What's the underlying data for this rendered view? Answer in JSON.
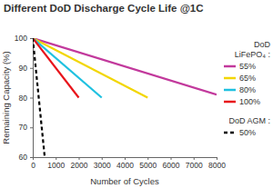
{
  "chart_data": {
    "type": "line",
    "title": "Different DoD Discharge Cycle Life @1C",
    "x_label": "Number of Cycles",
    "y_label": "Remaining Capacity (%)",
    "xlim": [
      0,
      8000
    ],
    "xticks": [
      0,
      1000,
      2000,
      3000,
      4000,
      5000,
      6000,
      7000,
      8000
    ],
    "ylim": [
      60,
      100
    ],
    "yticks": [
      60,
      70,
      80,
      90,
      100
    ],
    "grid": false,
    "legend": "right",
    "legend_titles": [
      [
        "DoD",
        "LiFePO₄ :"
      ],
      [
        "DoD AGM :"
      ]
    ],
    "series": [
      {
        "name": "55%",
        "color": "#c2399c",
        "line_style": "solid",
        "group": 0,
        "x": [
          0,
          8000
        ],
        "values": [
          100,
          81
        ]
      },
      {
        "name": "65%",
        "color": "#f2d600",
        "line_style": "solid",
        "group": 0,
        "x": [
          0,
          5000
        ],
        "values": [
          100,
          80
        ]
      },
      {
        "name": "80%",
        "color": "#1fc1e0",
        "line_style": "solid",
        "group": 0,
        "x": [
          0,
          3000
        ],
        "values": [
          100,
          80
        ]
      },
      {
        "name": "100%",
        "color": "#e8141b",
        "line_style": "solid",
        "group": 0,
        "x": [
          0,
          2000
        ],
        "values": [
          100,
          80
        ]
      },
      {
        "name": "50%",
        "color": "#000000",
        "line_style": "dashed",
        "group": 1,
        "x": [
          0,
          520
        ],
        "values": [
          100,
          60
        ]
      }
    ]
  }
}
